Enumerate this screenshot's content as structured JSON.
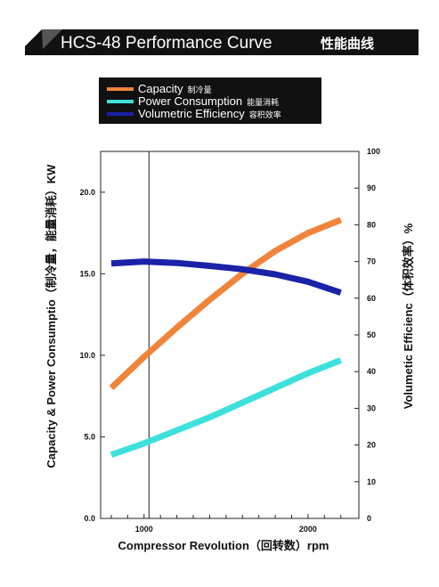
{
  "header": {
    "title": "HCS-48 Performance Curve",
    "title_cn": "性能曲线",
    "banner_color": "#111111"
  },
  "chart_data": {
    "type": "line",
    "xlabel": "Compressor Revolution（回转数）rpm",
    "ylabel_left": "Capacity & Power Consumptio（制冷量，能量消耗）KW",
    "ylabel_right": "Volumetic Efficienc（体积效率）%",
    "xlim": [
      735,
      2310
    ],
    "ylim_left": [
      0,
      22.5
    ],
    "ylim_right": [
      0,
      100
    ],
    "x_ticks": [
      1000,
      2000
    ],
    "x_minor_ticks": [
      800,
      900,
      1100,
      1200,
      1300,
      1400,
      1500,
      1600,
      1700,
      1800,
      1900,
      2100,
      2200
    ],
    "y_left_ticks": [
      0.0,
      5.0,
      10.0,
      15.0,
      20.0
    ],
    "y_left_tick_labels": [
      "0.0",
      "5.0",
      "10.0",
      "15.0",
      "20.0"
    ],
    "y_right_ticks": [
      0,
      10,
      20,
      30,
      40,
      50,
      60,
      70,
      80,
      90,
      100
    ],
    "reference_line_x": 1030,
    "legend_placement": "top-left",
    "grid": false,
    "series": [
      {
        "name": "Capacity",
        "name_cn": "制冷量",
        "color": "#f0843a",
        "axis": "left",
        "x": [
          800,
          1000,
          1200,
          1400,
          1600,
          1800,
          2000,
          2200
        ],
        "y": [
          8.0,
          9.9,
          11.7,
          13.4,
          15.0,
          16.4,
          17.5,
          18.3
        ]
      },
      {
        "name": "Power Consumption",
        "name_cn": "能量消耗",
        "color": "#3ee0dc",
        "axis": "left",
        "x": [
          800,
          1000,
          1200,
          1400,
          1600,
          1800,
          2000,
          2200
        ],
        "y": [
          3.9,
          4.6,
          5.4,
          6.2,
          7.1,
          8.0,
          8.9,
          9.7
        ]
      },
      {
        "name": "Volumetric Efficiency",
        "name_cn": "容积效率",
        "color": "#1a22a8",
        "axis": "right",
        "x": [
          800,
          1000,
          1200,
          1400,
          1600,
          1800,
          2000,
          2200
        ],
        "y": [
          69.5,
          70.0,
          69.6,
          68.8,
          67.9,
          66.5,
          64.5,
          61.5
        ]
      }
    ]
  }
}
